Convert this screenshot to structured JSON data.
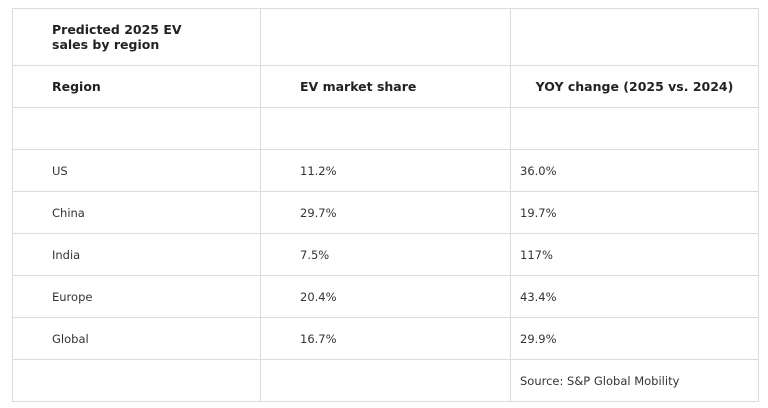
{
  "table": {
    "title": "Predicted 2025 EV sales by region",
    "columns": [
      "Region",
      "EV market share",
      "YOY change (2025 vs. 2024)"
    ],
    "rows": [
      [
        "US",
        "11.2%",
        "36.0%"
      ],
      [
        "China",
        "29.7%",
        "19.7%"
      ],
      [
        "India",
        "7.5%",
        "117%"
      ],
      [
        "Europe",
        "20.4%",
        "43.4%"
      ],
      [
        "Global",
        "16.7%",
        "29.9%"
      ]
    ],
    "source": "Source: S&P Global Mobility"
  }
}
